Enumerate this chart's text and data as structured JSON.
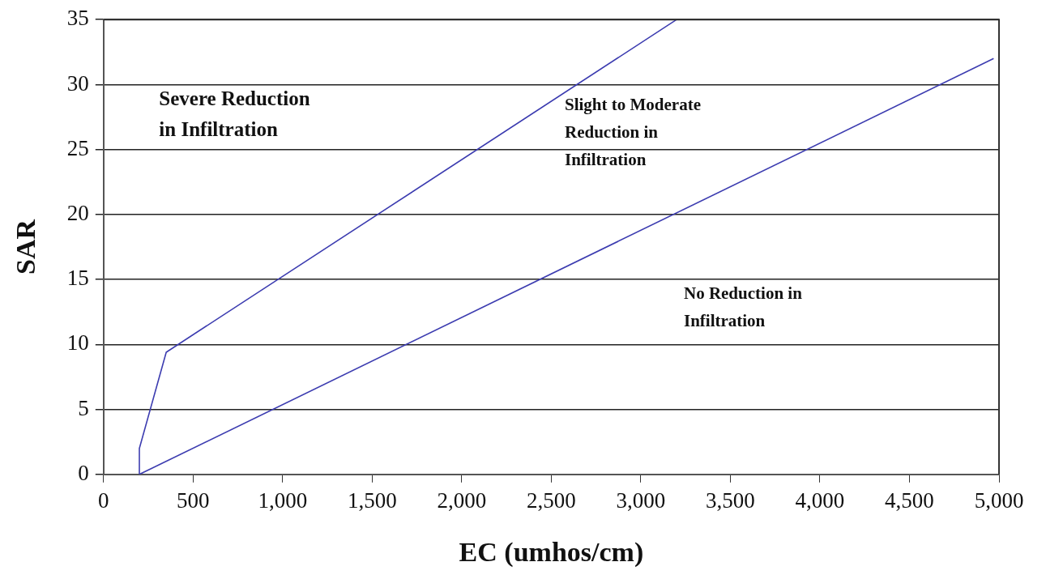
{
  "chart_data": {
    "type": "line",
    "xlabel": "EC (umhos/cm)",
    "ylabel": "SAR",
    "series": [
      {
        "color": "#3c3cb0",
        "x": [
          200,
          200,
          350,
          3200
        ],
        "values": [
          0,
          2,
          9.4,
          35
        ]
      },
      {
        "color": "#3c3cb0",
        "x": [
          200,
          4970
        ],
        "values": [
          0,
          32
        ]
      }
    ],
    "xlim": [
      0,
      5000
    ],
    "xticks": [
      {
        "value": 0,
        "label": "0"
      },
      {
        "value": 500,
        "label": "500"
      },
      {
        "value": 1000,
        "label": "1,000"
      },
      {
        "value": 1500,
        "label": "1,500"
      },
      {
        "value": 2000,
        "label": "2,000"
      },
      {
        "value": 2500,
        "label": "2,500"
      },
      {
        "value": 3000,
        "label": "3,000"
      },
      {
        "value": 3500,
        "label": "3,500"
      },
      {
        "value": 4000,
        "label": "4,000"
      },
      {
        "value": 4500,
        "label": "4,500"
      },
      {
        "value": 5000,
        "label": "5,000"
      }
    ],
    "ylim": [
      0,
      35
    ],
    "yticks": [
      0,
      5,
      10,
      15,
      20,
      25,
      30,
      35
    ],
    "grid": "y",
    "legend": false,
    "marker": "none",
    "line_style": "solid",
    "annotations": [
      "Severe Reduction\nin Infiltration",
      "Slight to Moderate\nReduction in\nInfiltration",
      "No Reduction in\nInfiltration"
    ]
  }
}
